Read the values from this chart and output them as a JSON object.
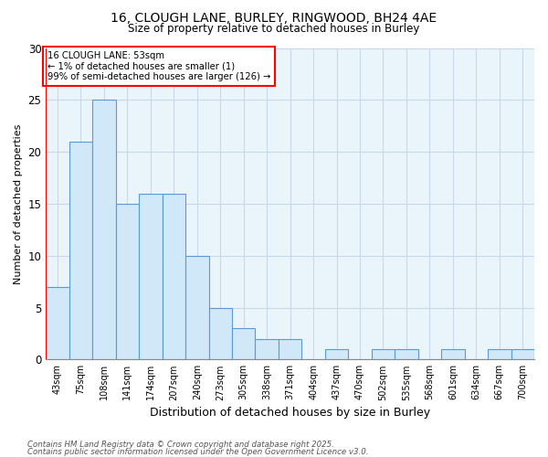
{
  "title_line1": "16, CLOUGH LANE, BURLEY, RINGWOOD, BH24 4AE",
  "title_line2": "Size of property relative to detached houses in Burley",
  "xlabel": "Distribution of detached houses by size in Burley",
  "ylabel": "Number of detached properties",
  "categories": [
    "43sqm",
    "75sqm",
    "108sqm",
    "141sqm",
    "174sqm",
    "207sqm",
    "240sqm",
    "273sqm",
    "305sqm",
    "338sqm",
    "371sqm",
    "404sqm",
    "437sqm",
    "470sqm",
    "502sqm",
    "535sqm",
    "568sqm",
    "601sqm",
    "634sqm",
    "667sqm",
    "700sqm"
  ],
  "values": [
    7,
    21,
    25,
    15,
    16,
    16,
    10,
    5,
    3,
    2,
    2,
    0,
    1,
    0,
    1,
    1,
    0,
    1,
    0,
    1,
    1
  ],
  "bar_facecolor": "#d0e8f8",
  "bar_edgecolor": "#5b9bd5",
  "grid_color": "#c8d8e8",
  "background_color": "#eaf4fb",
  "annotation_box_text": "16 CLOUGH LANE: 53sqm\n← 1% of detached houses are smaller (1)\n99% of semi-detached houses are larger (126) →",
  "red_line_x": -0.5,
  "ylim": [
    0,
    30
  ],
  "yticks": [
    0,
    5,
    10,
    15,
    20,
    25,
    30
  ],
  "footnote_line1": "Contains HM Land Registry data © Crown copyright and database right 2025.",
  "footnote_line2": "Contains public sector information licensed under the Open Government Licence v3.0."
}
